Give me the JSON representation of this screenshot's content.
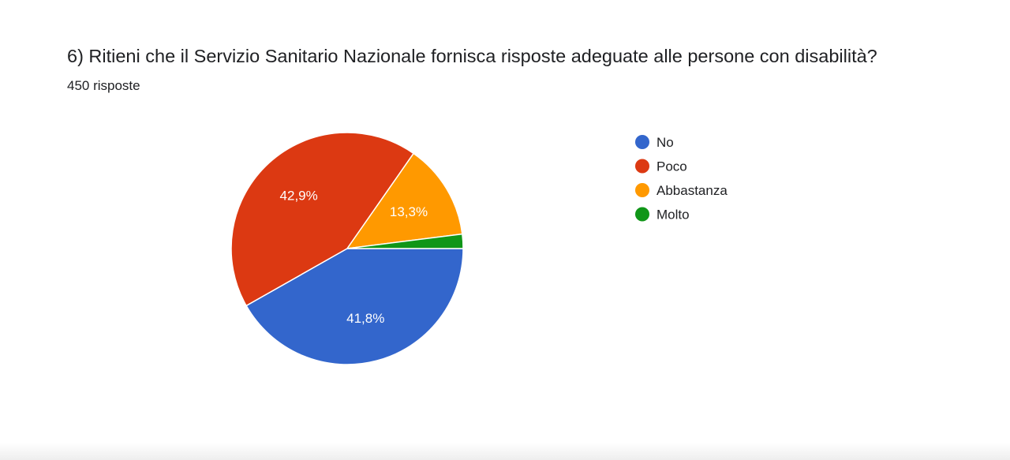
{
  "question": {
    "title": "6) Ritieni che il Servizio Sanitario Nazionale fornisca risposte adeguate alle persone con disabilità?",
    "responses": "450 risposte"
  },
  "chart_data": {
    "type": "pie",
    "categories": [
      "No",
      "Poco",
      "Abbastanza",
      "Molto"
    ],
    "values": [
      41.8,
      42.9,
      13.3,
      2.0
    ],
    "data_labels": [
      "41,8%",
      "42,9%",
      "13,3%",
      ""
    ],
    "colors": [
      "#3366cc",
      "#dc3912",
      "#ff9900",
      "#109618"
    ],
    "legend_position": "right"
  }
}
